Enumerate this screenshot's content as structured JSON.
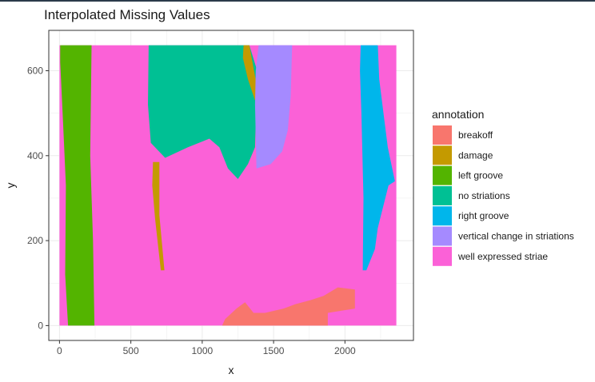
{
  "chart_data": {
    "type": "heatmap",
    "title": "Interpolated Missing Values",
    "xlabel": "x",
    "ylabel": "y",
    "xlim": [
      -75,
      2480
    ],
    "ylim": [
      -35,
      695
    ],
    "x_ticks": [
      0,
      500,
      1000,
      1500,
      2000
    ],
    "y_ticks": [
      0,
      200,
      400,
      600
    ],
    "grid": true,
    "legend": {
      "title": "annotation",
      "position": "right",
      "entries": [
        {
          "name": "breakoff",
          "color": "#F8766D"
        },
        {
          "name": "damage",
          "color": "#C49A00"
        },
        {
          "name": "left groove",
          "color": "#53B400"
        },
        {
          "name": "no striations",
          "color": "#00C094"
        },
        {
          "name": "right groove",
          "color": "#00B6EB"
        },
        {
          "name": "vertical change in striations",
          "color": "#A58AFF"
        },
        {
          "name": "well expressed striae",
          "color": "#FB61D7"
        }
      ]
    },
    "regions": [
      {
        "annotation": "well expressed striae",
        "points": [
          [
            0,
            0
          ],
          [
            2360,
            0
          ],
          [
            2360,
            660
          ],
          [
            0,
            660
          ]
        ]
      },
      {
        "annotation": "left groove",
        "points": [
          [
            5,
            660
          ],
          [
            225,
            660
          ],
          [
            215,
            400
          ],
          [
            235,
            200
          ],
          [
            245,
            0
          ],
          [
            60,
            0
          ],
          [
            40,
            120
          ],
          [
            45,
            330
          ],
          [
            25,
            480
          ],
          [
            5,
            620
          ]
        ]
      },
      {
        "annotation": "no striations",
        "points": [
          [
            625,
            660
          ],
          [
            1330,
            660
          ],
          [
            1385,
            600
          ],
          [
            1370,
            420
          ],
          [
            1320,
            380
          ],
          [
            1250,
            345
          ],
          [
            1180,
            370
          ],
          [
            1120,
            420
          ],
          [
            1050,
            440
          ],
          [
            900,
            420
          ],
          [
            740,
            395
          ],
          [
            640,
            430
          ],
          [
            620,
            520
          ]
        ]
      },
      {
        "annotation": "damage",
        "points": [
          [
            1290,
            660
          ],
          [
            1330,
            660
          ],
          [
            1385,
            560
          ],
          [
            1370,
            530
          ],
          [
            1320,
            580
          ],
          [
            1285,
            630
          ]
        ]
      },
      {
        "annotation": "damage",
        "points": [
          [
            655,
            385
          ],
          [
            700,
            385
          ],
          [
            700,
            260
          ],
          [
            735,
            130
          ],
          [
            710,
            130
          ],
          [
            670,
            250
          ],
          [
            650,
            330
          ]
        ]
      },
      {
        "annotation": "vertical change in striations",
        "points": [
          [
            1395,
            660
          ],
          [
            1630,
            660
          ],
          [
            1620,
            540
          ],
          [
            1600,
            460
          ],
          [
            1560,
            410
          ],
          [
            1480,
            380
          ],
          [
            1380,
            370
          ],
          [
            1370,
            520
          ],
          [
            1375,
            600
          ]
        ]
      },
      {
        "annotation": "right groove",
        "points": [
          [
            2110,
            660
          ],
          [
            2230,
            660
          ],
          [
            2240,
            580
          ],
          [
            2270,
            500
          ],
          [
            2300,
            420
          ],
          [
            2350,
            340
          ],
          [
            2305,
            330
          ],
          [
            2230,
            230
          ],
          [
            2210,
            180
          ],
          [
            2150,
            130
          ],
          [
            2125,
            130
          ],
          [
            2130,
            300
          ],
          [
            2115,
            500
          ],
          [
            2105,
            600
          ]
        ]
      },
      {
        "annotation": "breakoff",
        "points": [
          [
            1140,
            0
          ],
          [
            1880,
            0
          ],
          [
            1880,
            30
          ],
          [
            2070,
            40
          ],
          [
            2070,
            85
          ],
          [
            1950,
            90
          ],
          [
            1850,
            70
          ],
          [
            1760,
            60
          ],
          [
            1650,
            50
          ],
          [
            1570,
            40
          ],
          [
            1440,
            30
          ],
          [
            1360,
            30
          ],
          [
            1300,
            55
          ],
          [
            1240,
            40
          ],
          [
            1160,
            15
          ]
        ]
      }
    ]
  }
}
